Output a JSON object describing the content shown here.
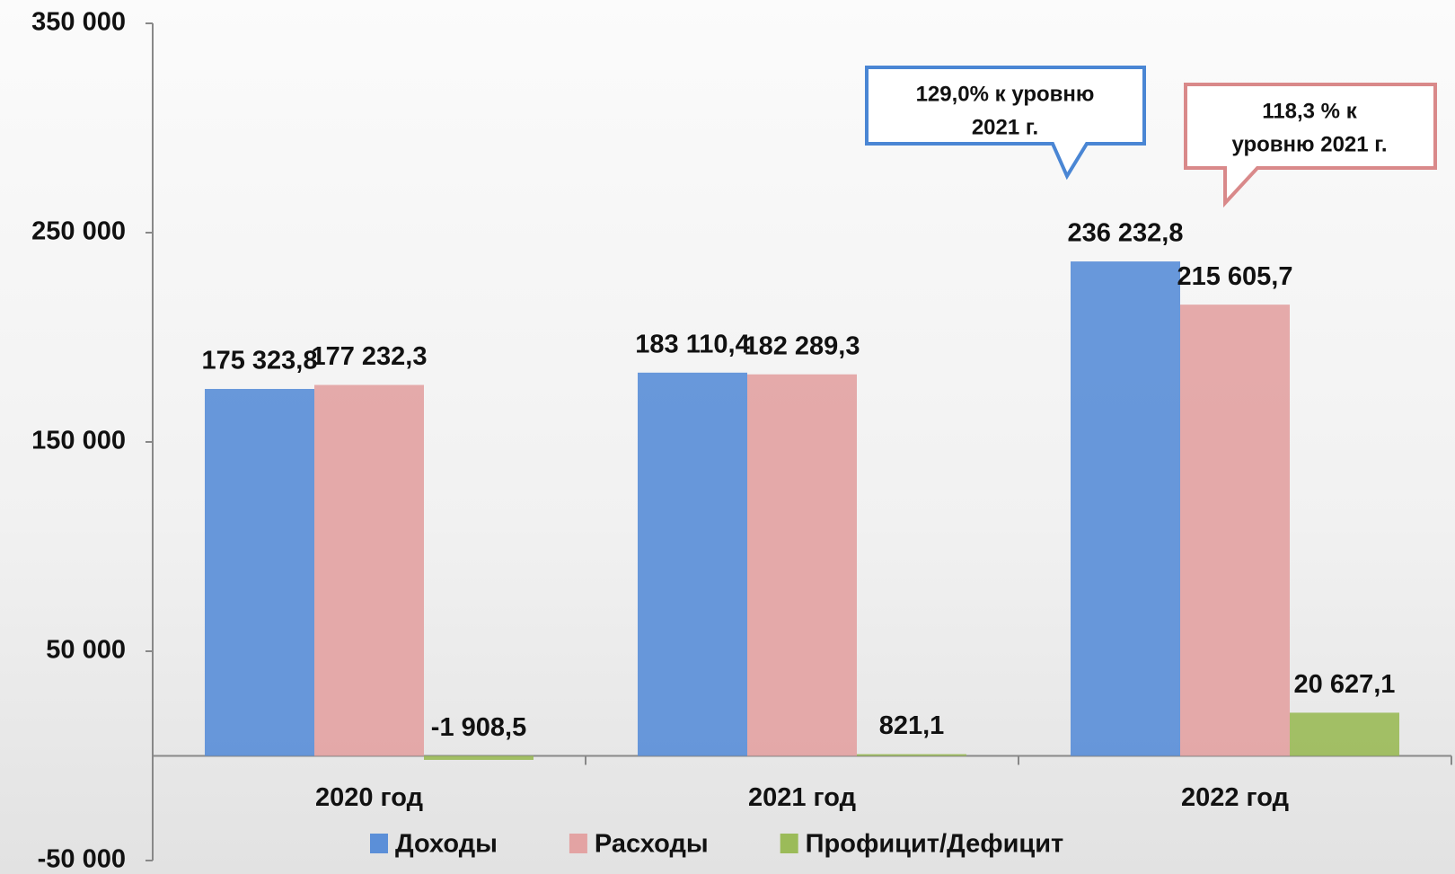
{
  "chart_data": {
    "type": "bar",
    "categories": [
      "2020 год",
      "2021 год",
      "2022 год"
    ],
    "series": [
      {
        "name": "Доходы",
        "color": "#5b8fd8",
        "values": [
          175323.8,
          183110.4,
          236232.8
        ],
        "value_labels": [
          "175 323,8",
          "183 110,4",
          "236 232,8"
        ]
      },
      {
        "name": "Расходы",
        "color": "#e3a3a3",
        "values": [
          177232.3,
          182289.3,
          215605.7
        ],
        "value_labels": [
          "177 232,3",
          "182 289,3",
          "215 605,7"
        ]
      },
      {
        "name": "Профицит/Дефицит",
        "color": "#9bbb59",
        "values": [
          -1908.5,
          821.1,
          20627.1
        ],
        "value_labels": [
          "-1 908,5",
          "821,1",
          "20 627,1"
        ]
      }
    ],
    "ylim": [
      -50000,
      350000
    ],
    "yticks": [
      {
        "value": -50000,
        "label": "-50 000"
      },
      {
        "value": 50000,
        "label": "50 000"
      },
      {
        "value": 150000,
        "label": "150 000"
      },
      {
        "value": 250000,
        "label": "250 000"
      },
      {
        "value": 350000,
        "label": "350 000"
      }
    ],
    "annotations": [
      [
        "129,0% к уровню",
        "2021 г."
      ],
      [
        "118,3 % к",
        "уровню 2021 г."
      ]
    ],
    "legend": "bottom"
  }
}
